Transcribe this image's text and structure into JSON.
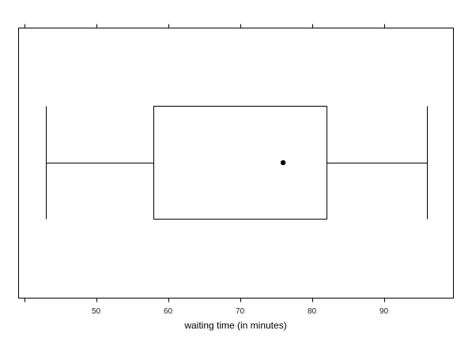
{
  "chart_data": {
    "type": "box",
    "orientation": "horizontal",
    "xlabel": "waiting time (in minutes)",
    "ylabel": "",
    "title": "",
    "xlim": [
      40,
      100
    ],
    "xticks": [
      50,
      60,
      70,
      80,
      90
    ],
    "grid": false,
    "box": {
      "min": 43,
      "q1": 58,
      "median": 76,
      "q3": 82,
      "max": 96
    }
  }
}
